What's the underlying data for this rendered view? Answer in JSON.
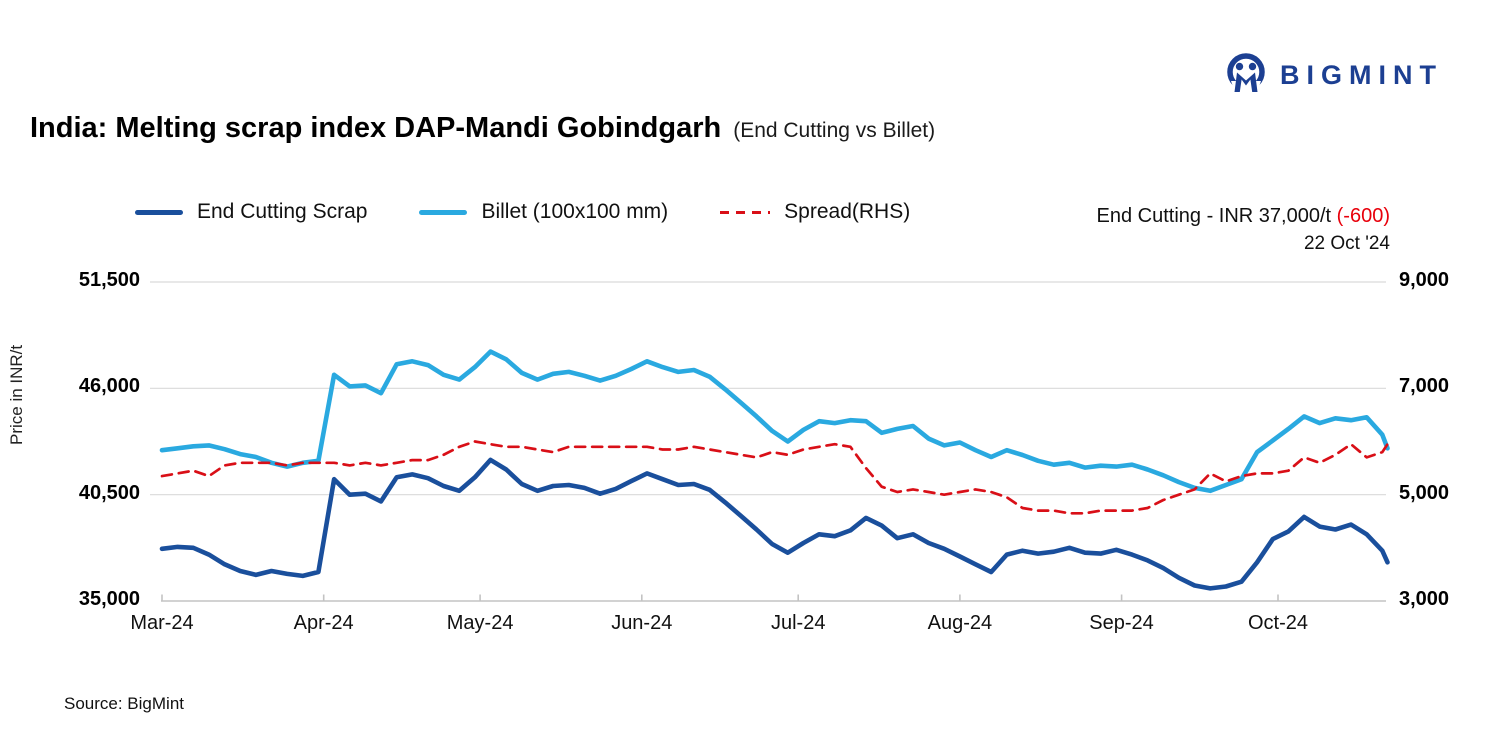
{
  "logo": {
    "text": "BIGMINT",
    "color": "#1c3f92"
  },
  "title": {
    "main": "India: Melting scrap index DAP-Mandi Gobindgarh",
    "suffix": "(End Cutting vs Billet)"
  },
  "legend": {
    "items": [
      {
        "label": "End Cutting Scrap",
        "color": "#1a4f9c",
        "style": "solid"
      },
      {
        "label": "Billet (100x100 mm)",
        "color": "#2aa9e0",
        "style": "solid"
      },
      {
        "label": "Spread(RHS)",
        "color": "#d90f17",
        "style": "dashed"
      }
    ]
  },
  "annotation": {
    "price_label": "End Cutting - INR 37,000/t",
    "change": "(-600)",
    "change_color": "#e8000b",
    "date": "22 Oct '24"
  },
  "axes": {
    "left_title": "Price in INR/t",
    "left_ticks": [
      {
        "value": 51500,
        "label": "51,500"
      },
      {
        "value": 46000,
        "label": "46,000"
      },
      {
        "value": 40500,
        "label": "40,500"
      },
      {
        "value": 35000,
        "label": "35,000"
      }
    ],
    "right_ticks": [
      {
        "value": 9000,
        "label": "9,000"
      },
      {
        "value": 7000,
        "label": "7,000"
      },
      {
        "value": 5000,
        "label": "5,000"
      },
      {
        "value": 3000,
        "label": "3,000"
      }
    ],
    "x_ticks": [
      {
        "day": 0,
        "label": "Mar-24"
      },
      {
        "day": 31,
        "label": "Apr-24"
      },
      {
        "day": 61,
        "label": "May-24"
      },
      {
        "day": 92,
        "label": "Jun-24"
      },
      {
        "day": 122,
        "label": "Jul-24"
      },
      {
        "day": 153,
        "label": "Aug-24"
      },
      {
        "day": 184,
        "label": "Sep-24"
      },
      {
        "day": 214,
        "label": "Oct-24"
      }
    ]
  },
  "source": "Source: BigMint",
  "chart_data": {
    "type": "line",
    "title": "India: Melting scrap index DAP-Mandi Gobindgarh (End Cutting vs Billet)",
    "ylabel_left": "Price in INR/t",
    "ylim_left": [
      35000,
      51500
    ],
    "yticks_left": [
      35000,
      40500,
      46000,
      51500
    ],
    "ylim_right": [
      3000,
      9000
    ],
    "yticks_right": [
      3000,
      5000,
      7000,
      9000
    ],
    "grid": "horizontal",
    "legend_position": "top-left",
    "x_unit": "days since 1 Mar 2024 (series ends 22 Oct 2024)",
    "x_tick_labels": [
      "Mar-24",
      "Apr-24",
      "May-24",
      "Jun-24",
      "Jul-24",
      "Aug-24",
      "Sep-24",
      "Oct-24"
    ],
    "x_tick_days": [
      0,
      31,
      61,
      92,
      122,
      153,
      184,
      214
    ],
    "x_days": [
      0,
      3,
      6,
      9,
      12,
      15,
      18,
      21,
      24,
      27,
      30,
      33,
      36,
      39,
      42,
      45,
      48,
      51,
      54,
      57,
      60,
      63,
      66,
      69,
      72,
      75,
      78,
      81,
      84,
      87,
      90,
      93,
      96,
      99,
      102,
      105,
      108,
      111,
      114,
      117,
      120,
      123,
      126,
      129,
      132,
      135,
      138,
      141,
      144,
      147,
      150,
      153,
      156,
      159,
      162,
      165,
      168,
      171,
      174,
      177,
      180,
      183,
      186,
      189,
      192,
      195,
      198,
      201,
      204,
      207,
      210,
      213,
      216,
      219,
      222,
      225,
      228,
      231,
      234,
      235
    ],
    "series": [
      {
        "name": "End Cutting Scrap",
        "axis": "left",
        "color": "#1a4f9c",
        "style": "solid",
        "values": [
          37700,
          37800,
          37750,
          37400,
          36900,
          36550,
          36350,
          36550,
          36400,
          36300,
          36500,
          41300,
          40500,
          40550,
          40150,
          41400,
          41550,
          41350,
          40950,
          40700,
          41400,
          42300,
          41800,
          41050,
          40700,
          40950,
          41000,
          40850,
          40550,
          40800,
          41200,
          41600,
          41300,
          41000,
          41050,
          40750,
          40100,
          39400,
          38700,
          37950,
          37500,
          38000,
          38450,
          38350,
          38650,
          39300,
          38900,
          38250,
          38450,
          38000,
          37700,
          37300,
          36900,
          36500,
          37400,
          37600,
          37450,
          37550,
          37750,
          37500,
          37450,
          37650,
          37400,
          37100,
          36700,
          36200,
          35800,
          35650,
          35750,
          36000,
          37000,
          38200,
          38600,
          39350,
          38850,
          38700,
          38950,
          38450,
          37600,
          37000
        ]
      },
      {
        "name": "Billet (100x100 mm)",
        "axis": "left",
        "color": "#2aa9e0",
        "style": "solid",
        "values": [
          42800,
          42900,
          43000,
          43050,
          42850,
          42600,
          42450,
          42150,
          41950,
          42150,
          42250,
          46700,
          46100,
          46150,
          45750,
          47250,
          47400,
          47200,
          46700,
          46450,
          47100,
          47900,
          47500,
          46800,
          46450,
          46750,
          46850,
          46650,
          46400,
          46650,
          47000,
          47400,
          47100,
          46850,
          46950,
          46600,
          45950,
          45250,
          44550,
          43800,
          43250,
          43850,
          44300,
          44200,
          44350,
          44300,
          43700,
          43900,
          44050,
          43400,
          43050,
          43200,
          42800,
          42450,
          42800,
          42550,
          42250,
          42050,
          42150,
          41900,
          42000,
          41950,
          42050,
          41800,
          41500,
          41150,
          40850,
          40700,
          41000,
          41300,
          42700,
          43300,
          43900,
          44550,
          44200,
          44450,
          44350,
          44500,
          43600,
          42900
        ]
      },
      {
        "name": "Spread(RHS)",
        "axis": "right",
        "color": "#d90f17",
        "style": "dashed",
        "values": [
          5350,
          5400,
          5450,
          5350,
          5550,
          5600,
          5600,
          5600,
          5550,
          5600,
          5600,
          5600,
          5550,
          5600,
          5550,
          5600,
          5650,
          5650,
          5750,
          5900,
          6000,
          5950,
          5900,
          5900,
          5850,
          5800,
          5900,
          5900,
          5900,
          5900,
          5900,
          5900,
          5850,
          5850,
          5900,
          5850,
          5800,
          5750,
          5700,
          5800,
          5750,
          5850,
          5900,
          5950,
          5900,
          5500,
          5150,
          5050,
          5100,
          5050,
          5000,
          5050,
          5100,
          5050,
          4950,
          4750,
          4700,
          4700,
          4650,
          4650,
          4700,
          4700,
          4700,
          4750,
          4900,
          5000,
          5100,
          5400,
          5250,
          5350,
          5400,
          5400,
          5450,
          5700,
          5600,
          5750,
          5950,
          5700,
          5800,
          5950
        ]
      }
    ],
    "latest": {
      "series": "End Cutting Scrap",
      "value": 37000,
      "change": -600,
      "date": "22 Oct '24"
    }
  }
}
